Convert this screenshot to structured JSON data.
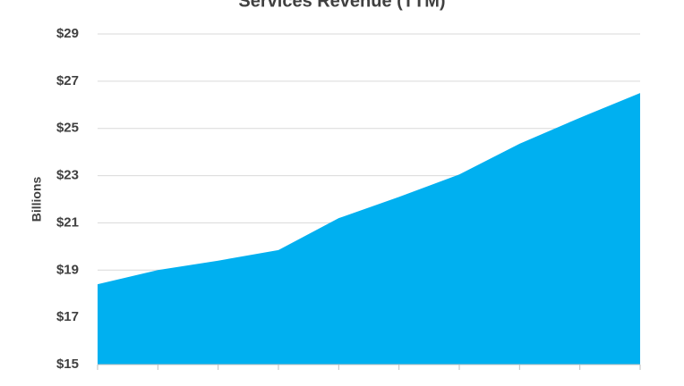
{
  "chart_data": {
    "type": "area",
    "title": "Services Revenue (TTM)",
    "y_label": "Billions",
    "categories": [
      null,
      null,
      null,
      null,
      null,
      null,
      null,
      null,
      null,
      null
    ],
    "values": [
      18.4,
      19.0,
      19.4,
      19.85,
      21.2,
      22.1,
      23.05,
      24.35,
      25.45,
      26.5
    ],
    "color": "#00b0f0",
    "ylim": [
      15,
      29
    ],
    "yticks": [
      {
        "value": 15,
        "label": "$15"
      },
      {
        "value": 17,
        "label": "$17"
      },
      {
        "value": 19,
        "label": "$19"
      },
      {
        "value": 21,
        "label": "$21"
      },
      {
        "value": 23,
        "label": "$23"
      },
      {
        "value": 25,
        "label": "$25"
      },
      {
        "value": 27,
        "label": "$27"
      },
      {
        "value": 29,
        "label": "$29"
      }
    ],
    "grid": true
  }
}
